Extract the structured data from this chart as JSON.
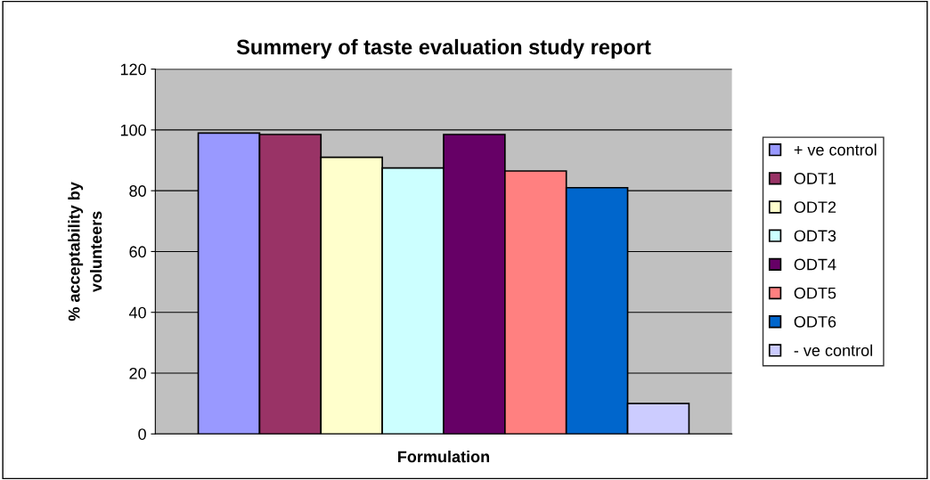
{
  "chart_data": {
    "type": "bar",
    "title": "Summery of taste evaluation study report",
    "xlabel": "Formulation",
    "ylabel": "% acceptability by\nvolunteers",
    "categories": [
      null
    ],
    "series": [
      {
        "name": "+ ve control",
        "color": "#9999ff",
        "values": [
          99
        ]
      },
      {
        "name": "ODT1",
        "color": "#993366",
        "values": [
          98.5
        ]
      },
      {
        "name": "ODT2",
        "color": "#ffffcc",
        "values": [
          91
        ]
      },
      {
        "name": "ODT3",
        "color": "#ccffff",
        "values": [
          87.5
        ]
      },
      {
        "name": "ODT4",
        "color": "#660066",
        "values": [
          98.5
        ]
      },
      {
        "name": "ODT5",
        "color": "#ff8080",
        "values": [
          86.5
        ]
      },
      {
        "name": "ODT6",
        "color": "#0066cc",
        "values": [
          81
        ]
      },
      {
        "name": "- ve control",
        "color": "#ccccff",
        "values": [
          10
        ]
      }
    ],
    "ylim": [
      0,
      120
    ],
    "yticks": [
      0,
      20,
      40,
      60,
      80,
      100,
      120
    ],
    "grid": "y",
    "legend": "right"
  }
}
